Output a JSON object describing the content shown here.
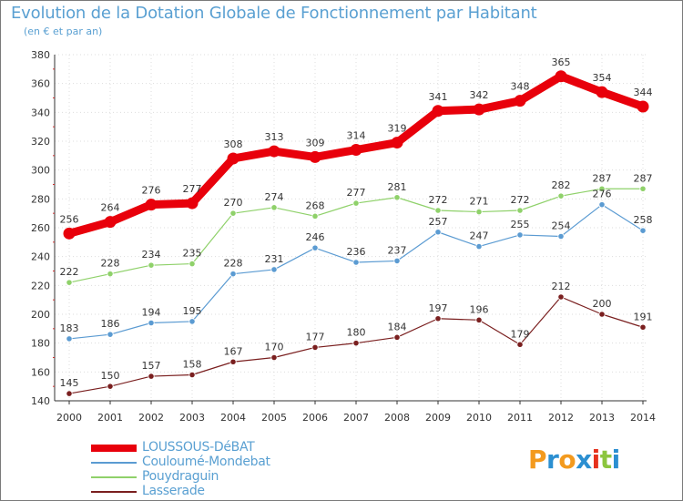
{
  "header": {
    "title": "Evolution de la Dotation Globale de Fonctionnement par Habitant",
    "subtitle": "(en € et par an)"
  },
  "logo": {
    "text": "Proxiti"
  },
  "chart_data": {
    "type": "line",
    "title": "Evolution de la Dotation Globale de Fonctionnement par Habitant",
    "subtitle": "(en € et par an)",
    "x": [
      "2000",
      "2001",
      "2002",
      "2003",
      "2004",
      "2005",
      "2006",
      "2007",
      "2008",
      "2009",
      "2010",
      "2011",
      "2012",
      "2013",
      "2014"
    ],
    "ylim": [
      140,
      380
    ],
    "yticks": [
      140,
      160,
      180,
      200,
      220,
      240,
      260,
      280,
      300,
      320,
      340,
      360,
      380
    ],
    "grid": true,
    "legend_position": "bottom-left",
    "series": [
      {
        "name": "LOUSSOUS-DéBAT",
        "color": "#e8000b",
        "values": [
          256,
          264,
          276,
          277,
          308,
          313,
          309,
          314,
          319,
          341,
          342,
          348,
          365,
          354,
          344
        ]
      },
      {
        "name": "Couloumé-Mondebat",
        "color": "#5b9bd2",
        "values": [
          183,
          186,
          194,
          195,
          228,
          231,
          246,
          236,
          237,
          257,
          247,
          255,
          254,
          276,
          258
        ]
      },
      {
        "name": "Pouydraguin",
        "color": "#8fd16a",
        "values": [
          222,
          228,
          234,
          235,
          270,
          274,
          268,
          277,
          281,
          272,
          271,
          272,
          282,
          287,
          287
        ]
      },
      {
        "name": "Lasserade",
        "color": "#7a1f1f",
        "values": [
          145,
          150,
          157,
          158,
          167,
          170,
          177,
          180,
          184,
          197,
          196,
          179,
          212,
          200,
          191
        ]
      }
    ]
  }
}
